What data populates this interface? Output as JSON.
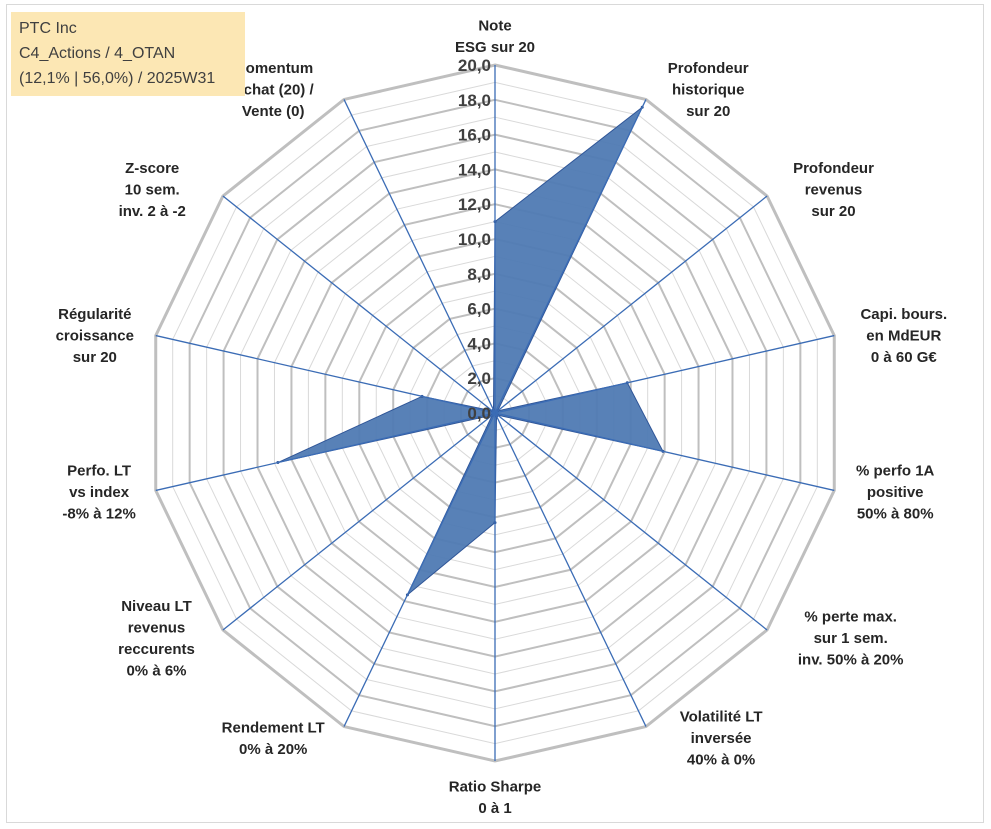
{
  "info_box": {
    "line1": "PTC Inc",
    "line2": "C4_Actions / 4_OTAN",
    "line3": "(12,1% | 56,0%) / 2025W31"
  },
  "colors": {
    "series_fill": "#4f7ab3",
    "spokes": "#3b6cb5",
    "grid_major": "#bfbfbf",
    "grid_minor": "#d9d9d9",
    "info_box_bg": "#fce7b4"
  },
  "chart_data": {
    "type": "radar",
    "title": "",
    "scale": {
      "min": 0,
      "max": 20,
      "step": 2
    },
    "tick_labels": [
      "0,0",
      "2,0",
      "4,0",
      "6,0",
      "8,0",
      "10,0",
      "12,0",
      "14,0",
      "16,0",
      "18,0",
      "20,0"
    ],
    "axes": [
      {
        "label_lines": [
          "Note",
          "ESG sur 20"
        ],
        "value": 11.0
      },
      {
        "label_lines": [
          "Profondeur",
          "historique",
          "sur 20"
        ],
        "value": 19.5
      },
      {
        "label_lines": [
          "Profondeur",
          "revenus",
          "sur 20"
        ],
        "value": 0.2
      },
      {
        "label_lines": [
          "Capi. bours.",
          "en MdEUR",
          "0 à 60 G€"
        ],
        "value": 7.8
      },
      {
        "label_lines": [
          "% perfo 1A",
          "positive",
          "50% à 80%"
        ],
        "value": 9.9
      },
      {
        "label_lines": [
          "% perte max.",
          "sur 1 sem.",
          "inv. 50% à 20%"
        ],
        "value": 0.2
      },
      {
        "label_lines": [
          "Volatilité LT",
          "inversée",
          "40% à 0%"
        ],
        "value": 0.2
      },
      {
        "label_lines": [
          "Ratio Sharpe",
          "0 à 1"
        ],
        "value": 6.3
      },
      {
        "label_lines": [
          "Rendement LT",
          "0% à 20%"
        ],
        "value": 11.6
      },
      {
        "label_lines": [
          "Niveau LT",
          "revenus",
          "reccurents",
          "0% à 6%"
        ],
        "value": 0.2
      },
      {
        "label_lines": [
          "Perfo. LT",
          "vs index",
          "-8% à 12%"
        ],
        "value": 12.8
      },
      {
        "label_lines": [
          "Régularité",
          "croissance",
          "sur 20"
        ],
        "value": 4.3
      },
      {
        "label_lines": [
          "Z-score",
          "10 sem.",
          "inv. 2 à -2"
        ],
        "value": 0.2
      },
      {
        "label_lines": [
          "Momentum",
          "Achat (20) /",
          "Vente (0)"
        ],
        "value": 0.2
      }
    ]
  }
}
